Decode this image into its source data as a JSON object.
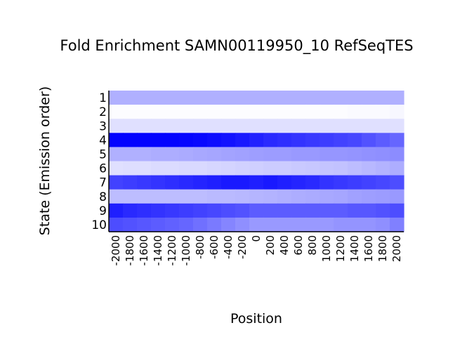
{
  "chart_data": {
    "type": "heatmap",
    "title": "Fold Enrichment SAMN00119950_10 RefSeqTES",
    "xlabel": "Position",
    "ylabel": "State (Emission order)",
    "x_tick_labels": [
      "-2000",
      "-1800",
      "-1600",
      "-1400",
      "-1200",
      "-1000",
      "-800",
      "-600",
      "-400",
      "-200",
      "0",
      "200",
      "400",
      "600",
      "800",
      "1000",
      "1200",
      "1400",
      "1600",
      "1800",
      "2000"
    ],
    "states": [
      "1",
      "2",
      "3",
      "4",
      "5",
      "6",
      "7",
      "8",
      "9",
      "10"
    ],
    "colormap": {
      "low": "#ffffff",
      "high": "#0000ff"
    },
    "values": [
      [
        0.31,
        0.31,
        0.31,
        0.31,
        0.31,
        0.31,
        0.31,
        0.31,
        0.31,
        0.31,
        0.31,
        0.31,
        0.31,
        0.31,
        0.31,
        0.31,
        0.31,
        0.31,
        0.31,
        0.31,
        0.31
      ],
      [
        0.01,
        0.01,
        0.01,
        0.01,
        0.01,
        0.01,
        0.01,
        0.01,
        0.01,
        0.01,
        0.01,
        0.01,
        0.01,
        0.01,
        0.01,
        0.01,
        0.01,
        0.02,
        0.02,
        0.02,
        0.03
      ],
      [
        0.12,
        0.12,
        0.12,
        0.12,
        0.12,
        0.12,
        0.12,
        0.12,
        0.12,
        0.12,
        0.12,
        0.12,
        0.12,
        0.12,
        0.12,
        0.12,
        0.12,
        0.12,
        0.12,
        0.12,
        0.12
      ],
      [
        0.99,
        0.99,
        0.99,
        0.99,
        0.99,
        0.98,
        0.97,
        0.95,
        0.93,
        0.9,
        0.87,
        0.84,
        0.82,
        0.8,
        0.78,
        0.76,
        0.74,
        0.72,
        0.68,
        0.64,
        0.6
      ],
      [
        0.31,
        0.31,
        0.31,
        0.32,
        0.32,
        0.33,
        0.34,
        0.35,
        0.36,
        0.37,
        0.38,
        0.39,
        0.39,
        0.4,
        0.4,
        0.41,
        0.41,
        0.42,
        0.43,
        0.44,
        0.45
      ],
      [
        0.12,
        0.13,
        0.13,
        0.14,
        0.14,
        0.15,
        0.15,
        0.16,
        0.17,
        0.18,
        0.19,
        0.2,
        0.2,
        0.21,
        0.22,
        0.23,
        0.24,
        0.26,
        0.28,
        0.3,
        0.32
      ],
      [
        0.74,
        0.76,
        0.78,
        0.8,
        0.82,
        0.84,
        0.86,
        0.88,
        0.9,
        0.9,
        0.88,
        0.9,
        0.88,
        0.86,
        0.84,
        0.8,
        0.78,
        0.76,
        0.74,
        0.72,
        0.7
      ],
      [
        0.26,
        0.26,
        0.26,
        0.26,
        0.26,
        0.26,
        0.26,
        0.27,
        0.27,
        0.28,
        0.29,
        0.3,
        0.31,
        0.32,
        0.33,
        0.34,
        0.35,
        0.37,
        0.38,
        0.39,
        0.4
      ],
      [
        0.88,
        0.84,
        0.82,
        0.8,
        0.78,
        0.76,
        0.74,
        0.72,
        0.7,
        0.68,
        0.64,
        0.64,
        0.64,
        0.64,
        0.64,
        0.64,
        0.64,
        0.66,
        0.66,
        0.68,
        0.7
      ],
      [
        0.7,
        0.68,
        0.66,
        0.64,
        0.62,
        0.6,
        0.56,
        0.52,
        0.48,
        0.44,
        0.4,
        0.4,
        0.4,
        0.4,
        0.4,
        0.4,
        0.42,
        0.42,
        0.42,
        0.44,
        0.5
      ]
    ]
  }
}
